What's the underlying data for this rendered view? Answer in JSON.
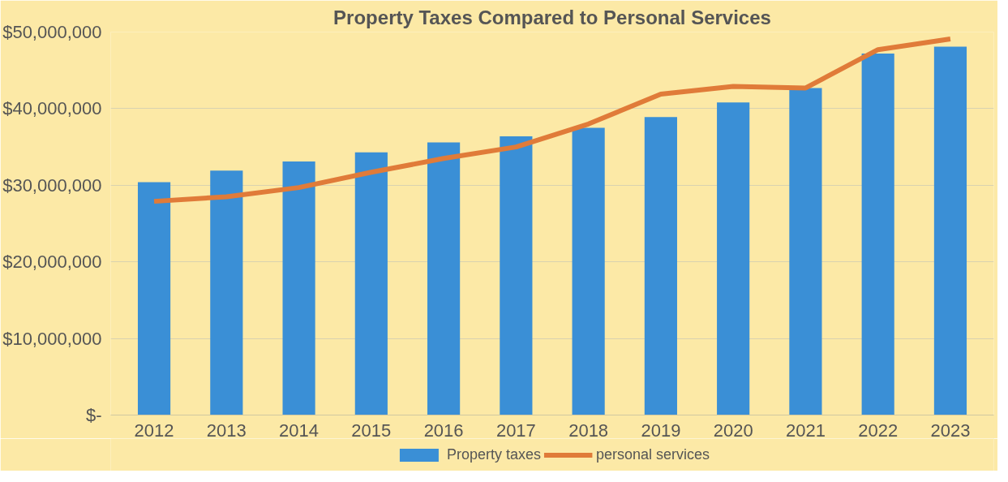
{
  "chart_data": {
    "type": "bar",
    "title": "Property Taxes Compared to Personal Services",
    "categories": [
      "2012",
      "2013",
      "2014",
      "2015",
      "2016",
      "2017",
      "2018",
      "2019",
      "2020",
      "2021",
      "2022",
      "2023"
    ],
    "series": [
      {
        "name": "Property taxes",
        "color": "#3a8fd6",
        "values": [
          30400000,
          31900000,
          33100000,
          34300000,
          35600000,
          36400000,
          37500000,
          38900000,
          40800000,
          42700000,
          47200000,
          48100000
        ]
      },
      {
        "name": "personal services",
        "type": "line",
        "color": "#e07b39",
        "values": [
          27900000,
          28500000,
          29700000,
          31700000,
          33500000,
          35000000,
          38000000,
          41900000,
          42900000,
          42700000,
          47700000,
          49100000
        ]
      }
    ],
    "ylim": [
      0,
      50000000
    ],
    "yticks": [
      {
        "value": 0,
        "label": "$-"
      },
      {
        "value": 10000000,
        "label": "$10,000,000"
      },
      {
        "value": 20000000,
        "label": "$20,000,000"
      },
      {
        "value": 30000000,
        "label": "$30,000,000"
      },
      {
        "value": 40000000,
        "label": "$40,000,000"
      },
      {
        "value": 50000000,
        "label": "$50,000,000"
      }
    ],
    "grid": "y",
    "legend": "bottom",
    "line_style": "solid",
    "marker": "none"
  }
}
